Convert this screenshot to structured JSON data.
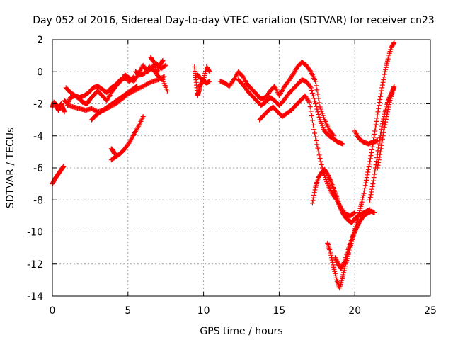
{
  "chart_data": {
    "type": "scatter",
    "title": "Day 052 of 2016, Sidereal Day-to-day VTEC variation (SDTVAR) for receiver cn23",
    "xlabel": "GPS time / hours",
    "ylabel": "SDTVAR / TECUs",
    "xlim": [
      0,
      25
    ],
    "ylim": [
      -14,
      2
    ],
    "x_ticks": [
      0,
      5,
      10,
      15,
      20,
      25
    ],
    "y_ticks": [
      2,
      0,
      -2,
      -4,
      -6,
      -8,
      -10,
      -12,
      -14
    ],
    "x_tick_labels": [
      "0",
      "5",
      "10",
      "15",
      "20",
      "25"
    ],
    "y_tick_labels": [
      "2",
      "0",
      "-2",
      "-4",
      "-6",
      "-8",
      "-10",
      "-12",
      "-14"
    ],
    "grid": true,
    "marker": "+",
    "color": "#ff0000",
    "series": [
      {
        "x": [
          0.0,
          0.1,
          0.2,
          0.3,
          0.4,
          0.5,
          0.6,
          0.7,
          0.8
        ],
        "y": [
          -2.2,
          -1.9,
          -2.0,
          -2.2,
          -2.4,
          -2.1,
          -2.0,
          -2.3,
          -2.5
        ]
      },
      {
        "x": [
          0.0,
          0.15,
          0.3,
          0.45,
          0.6,
          0.75
        ],
        "y": [
          -7.0,
          -6.7,
          -6.5,
          -6.3,
          -6.1,
          -5.9
        ]
      },
      {
        "x": [
          0.8,
          1.0,
          1.2,
          1.5,
          1.8,
          2.0,
          2.3,
          2.5,
          2.8,
          3.0,
          3.3,
          3.6,
          3.9,
          4.2,
          4.5,
          4.8,
          5.1,
          5.4,
          5.7,
          6.0,
          6.3,
          6.6,
          6.9,
          7.2,
          7.5
        ],
        "y": [
          -1.8,
          -2.0,
          -1.6,
          -1.5,
          -1.7,
          -1.9,
          -2.0,
          -1.7,
          -1.4,
          -1.2,
          -1.5,
          -1.8,
          -1.3,
          -0.9,
          -0.6,
          -0.2,
          -0.4,
          -0.6,
          -0.1,
          0.4,
          0.0,
          0.3,
          0.5,
          0.2,
          0.4
        ]
      },
      {
        "x": [
          0.9,
          1.2,
          1.5,
          1.8,
          2.1,
          2.4,
          2.7,
          3.0,
          3.3,
          3.6,
          3.9,
          4.2,
          4.5,
          4.8,
          5.1,
          5.4
        ],
        "y": [
          -1.0,
          -1.3,
          -1.5,
          -1.6,
          -1.5,
          -1.3,
          -1.0,
          -0.9,
          -1.1,
          -1.3,
          -1.0,
          -0.8,
          -0.5,
          -0.4,
          -0.6,
          -0.3
        ]
      },
      {
        "x": [
          1.0,
          1.4,
          1.8,
          2.2,
          2.6,
          3.0,
          3.4,
          3.8,
          4.2,
          4.6,
          5.0,
          5.4,
          5.8,
          6.2,
          6.6,
          7.0,
          7.4
        ],
        "y": [
          -2.1,
          -2.2,
          -2.3,
          -2.4,
          -2.3,
          -2.5,
          -2.4,
          -2.2,
          -2.0,
          -1.7,
          -1.4,
          -1.2,
          -1.0,
          -0.8,
          -0.6,
          -0.5,
          -0.3
        ]
      },
      {
        "x": [
          2.6,
          2.9,
          3.2,
          3.5,
          3.8,
          4.1,
          4.4,
          4.7,
          5.0,
          5.3,
          5.6
        ],
        "y": [
          -3.0,
          -2.7,
          -2.5,
          -2.3,
          -2.1,
          -1.9,
          -1.7,
          -1.5,
          -1.3,
          -1.1,
          -0.9
        ]
      },
      {
        "x": [
          3.9,
          4.2,
          4.5,
          4.8,
          5.1,
          5.4,
          5.7,
          6.0
        ],
        "y": [
          -5.5,
          -5.3,
          -5.1,
          -4.8,
          -4.4,
          -3.9,
          -3.4,
          -2.8
        ]
      },
      {
        "x": [
          3.9,
          4.0,
          4.1
        ],
        "y": [
          -4.8,
          -4.9,
          -5.1
        ]
      },
      {
        "x": [
          5.5,
          5.8,
          6.1,
          6.4,
          6.7,
          7.0,
          7.3,
          7.6
        ],
        "y": [
          0.0,
          -0.2,
          -0.1,
          0.3,
          0.1,
          -0.3,
          -0.5,
          -1.2
        ]
      },
      {
        "x": [
          6.5,
          6.7,
          6.9,
          7.1,
          7.3
        ],
        "y": [
          0.9,
          0.6,
          -0.1,
          0.4,
          0.7
        ]
      },
      {
        "x": [
          9.4,
          9.5,
          9.6,
          9.7,
          9.8,
          10.0,
          10.2,
          10.4
        ],
        "y": [
          0.3,
          -0.5,
          -1.5,
          -1.2,
          -0.8,
          -0.5,
          0.3,
          0.0
        ]
      },
      {
        "x": [
          9.6,
          9.8,
          10.0,
          10.2,
          10.4
        ],
        "y": [
          -0.2,
          -0.4,
          -0.6,
          -0.7,
          -0.6
        ]
      },
      {
        "x": [
          11.1,
          11.4,
          11.7,
          12.0,
          12.3,
          12.6,
          12.9,
          13.2,
          13.5,
          13.8,
          14.1,
          14.4,
          14.7,
          15.0,
          15.3,
          15.6,
          15.9,
          16.2,
          16.5,
          16.8,
          17.1,
          17.4,
          17.7,
          18.0,
          18.3,
          18.6
        ],
        "y": [
          -0.6,
          -0.7,
          -0.9,
          -0.5,
          0.0,
          -0.3,
          -0.8,
          -1.1,
          -1.4,
          -1.7,
          -1.6,
          -1.2,
          -0.9,
          -1.5,
          -1.0,
          -0.6,
          -0.2,
          0.3,
          0.6,
          0.4,
          0.0,
          -0.6,
          -2.2,
          -3.0,
          -3.6,
          -4.0
        ]
      },
      {
        "x": [
          12.3,
          12.6,
          12.9,
          13.2,
          13.5,
          13.8,
          14.1,
          14.4,
          14.7,
          15.0,
          15.3,
          15.6,
          15.9,
          16.2,
          16.5,
          16.8,
          17.1,
          17.4,
          17.7,
          18.0,
          18.3,
          18.6,
          18.9,
          19.2
        ],
        "y": [
          -0.5,
          -0.8,
          -1.2,
          -1.5,
          -1.8,
          -2.1,
          -1.9,
          -1.6,
          -1.8,
          -2.1,
          -1.8,
          -1.4,
          -1.1,
          -0.8,
          -0.5,
          -0.6,
          -1.0,
          -2.0,
          -3.0,
          -3.7,
          -4.0,
          -4.2,
          -4.4,
          -4.5
        ]
      },
      {
        "x": [
          13.7,
          14.0,
          14.3,
          14.6,
          14.9,
          15.2,
          15.5,
          15.8,
          16.1,
          16.4,
          16.7,
          17.0,
          17.3,
          17.6,
          17.9,
          18.2,
          18.5,
          18.8,
          19.1,
          19.4,
          19.7,
          20.0
        ],
        "y": [
          -3.0,
          -2.7,
          -2.4,
          -2.2,
          -2.5,
          -2.8,
          -2.6,
          -2.4,
          -2.1,
          -1.8,
          -1.5,
          -1.9,
          -3.6,
          -5.0,
          -6.2,
          -7.0,
          -7.6,
          -8.0,
          -8.5,
          -8.9,
          -9.0,
          -8.8
        ]
      },
      {
        "x": [
          17.2,
          17.4,
          17.6,
          17.8,
          18.0,
          18.2,
          18.4,
          18.6,
          18.8,
          19.0,
          19.2,
          19.4,
          19.6,
          19.8,
          20.0,
          20.2,
          20.4,
          20.6,
          20.8,
          21.0
        ],
        "y": [
          -8.2,
          -7.2,
          -6.6,
          -6.3,
          -6.1,
          -6.4,
          -6.8,
          -7.3,
          -7.8,
          -8.4,
          -8.8,
          -9.1,
          -9.3,
          -9.4,
          -9.2,
          -9.0,
          -8.9,
          -8.8,
          -8.7,
          -8.6
        ]
      },
      {
        "x": [
          18.2,
          18.4,
          18.6,
          18.8,
          19.0,
          19.2,
          19.4,
          19.6,
          19.8,
          20.0,
          20.2,
          20.4,
          20.6,
          20.8,
          21.0,
          21.2,
          21.4,
          21.6,
          21.8,
          22.0,
          22.2,
          22.4,
          22.6
        ],
        "y": [
          -10.7,
          -11.3,
          -12.2,
          -13.0,
          -13.5,
          -12.8,
          -12.0,
          -11.3,
          -10.6,
          -9.9,
          -9.2,
          -8.4,
          -7.6,
          -6.6,
          -5.6,
          -4.5,
          -3.3,
          -2.1,
          -1.0,
          0.0,
          0.8,
          1.5,
          1.8
        ]
      },
      {
        "x": [
          18.7,
          18.9,
          19.1,
          19.3,
          19.5,
          19.7,
          19.9,
          20.1,
          20.3,
          20.5,
          20.7,
          20.9,
          21.1,
          21.3
        ],
        "y": [
          -11.6,
          -12.0,
          -12.3,
          -11.9,
          -11.3,
          -10.7,
          -10.2,
          -9.8,
          -9.4,
          -9.1,
          -8.9,
          -8.8,
          -8.7,
          -8.8
        ]
      },
      {
        "x": [
          20.0,
          20.3,
          20.6,
          20.9,
          21.2,
          21.5
        ],
        "y": [
          -3.7,
          -4.2,
          -4.4,
          -4.5,
          -4.4,
          -4.3
        ]
      },
      {
        "x": [
          21.0,
          21.2,
          21.4,
          21.6,
          21.8,
          22.0,
          22.2,
          22.4,
          22.6
        ],
        "y": [
          -8.0,
          -7.0,
          -5.8,
          -4.5,
          -3.4,
          -2.5,
          -1.8,
          -1.4,
          -1.0
        ]
      },
      {
        "x": [
          21.5,
          21.7,
          21.9,
          22.1,
          22.3,
          22.5,
          22.6
        ],
        "y": [
          -6.0,
          -5.0,
          -3.8,
          -2.8,
          -1.9,
          -1.2,
          -0.9
        ]
      }
    ]
  }
}
